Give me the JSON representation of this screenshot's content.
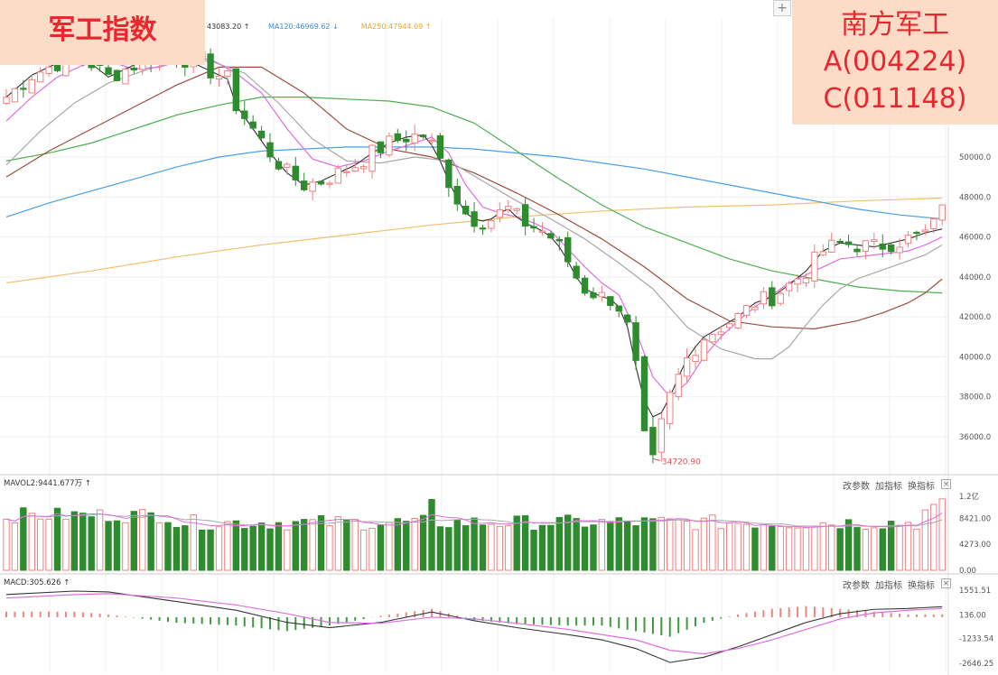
{
  "header": {
    "index_title": "军工指数",
    "fund_name": "南方军工",
    "fund_code_a": "A(004224)",
    "fund_code_c": "C(011148)",
    "ma_legend": [
      {
        "label": "43083.20 ↑",
        "color": "#333333"
      },
      {
        "label": "MA120:46969.62 ↓",
        "color": "#3a8fd8"
      },
      {
        "label": "MA250:47944.09 ↑",
        "color": "#e6a632"
      }
    ]
  },
  "toolbar": {
    "plus": "+",
    "change_params": "改参数",
    "add_indicator": "加指标",
    "switch_indicator": "换指标",
    "close": "×"
  },
  "colors": {
    "up": "#f08080",
    "down": "#2e8b2e",
    "ma5": "#333333",
    "ma10": "#e06ee0",
    "ma20": "#a8a8a8",
    "ma30": "#9a4f3f",
    "ma60": "#4caf50",
    "ma120": "#4a9fe8",
    "ma250": "#f0c070"
  },
  "chart_data": [
    {
      "type": "candlestick",
      "panel": "price",
      "ylim": [
        34000,
        56000
      ],
      "yticks": [
        "50000.0",
        "48000.0",
        "46000.0",
        "44000.0",
        "42000.0",
        "40000.0",
        "38000.0",
        "36000.0"
      ],
      "low_label": "34720.90",
      "series": [
        {
          "name": "MA120",
          "last": 46969.62
        },
        {
          "name": "MA250",
          "last": 47944.09
        }
      ],
      "ma_lines": {
        "ma5": [
          [
            0,
            53000
          ],
          [
            3,
            54100
          ],
          [
            6,
            54700
          ],
          [
            9,
            55000
          ],
          [
            12,
            54000
          ],
          [
            15,
            54600
          ],
          [
            18,
            55200
          ],
          [
            21,
            54900
          ],
          [
            24,
            54300
          ],
          [
            26,
            53900
          ],
          [
            27,
            52600
          ],
          [
            29,
            51400
          ],
          [
            31,
            50200
          ],
          [
            33,
            49200
          ],
          [
            35,
            48600
          ],
          [
            37,
            48800
          ],
          [
            39,
            49200
          ],
          [
            41,
            49600
          ],
          [
            43,
            50200
          ],
          [
            45,
            50700
          ],
          [
            47,
            51000
          ],
          [
            49,
            51100
          ],
          [
            50,
            50600
          ],
          [
            51,
            49800
          ],
          [
            52,
            48800
          ],
          [
            53,
            47900
          ],
          [
            54,
            47200
          ],
          [
            55,
            46900
          ],
          [
            56,
            46800
          ],
          [
            57,
            46900
          ],
          [
            58,
            47200
          ],
          [
            59,
            47400
          ],
          [
            60,
            47000
          ],
          [
            61,
            46700
          ],
          [
            62,
            46500
          ],
          [
            63,
            46300
          ],
          [
            64,
            46000
          ],
          [
            65,
            45500
          ],
          [
            66,
            44800
          ],
          [
            67,
            44000
          ],
          [
            68,
            43400
          ],
          [
            69,
            43200
          ],
          [
            70,
            43000
          ],
          [
            71,
            42900
          ],
          [
            72,
            42500
          ],
          [
            73,
            41500
          ],
          [
            74,
            39500
          ],
          [
            75,
            37800
          ],
          [
            76,
            37000
          ],
          [
            77,
            37200
          ],
          [
            78,
            38000
          ],
          [
            79,
            39000
          ],
          [
            80,
            39900
          ],
          [
            81,
            40500
          ],
          [
            82,
            41000
          ],
          [
            84,
            41500
          ],
          [
            86,
            42000
          ],
          [
            88,
            42700
          ],
          [
            90,
            43000
          ],
          [
            92,
            43600
          ],
          [
            94,
            44300
          ],
          [
            96,
            45300
          ],
          [
            98,
            45700
          ],
          [
            100,
            45600
          ],
          [
            102,
            45500
          ],
          [
            104,
            45700
          ],
          [
            106,
            45900
          ],
          [
            108,
            46200
          ],
          [
            110,
            46400
          ]
        ],
        "ma10": [
          [
            0,
            51800
          ],
          [
            3,
            53000
          ],
          [
            6,
            54000
          ],
          [
            9,
            54600
          ],
          [
            12,
            54800
          ],
          [
            15,
            54400
          ],
          [
            18,
            54500
          ],
          [
            21,
            54900
          ],
          [
            24,
            54900
          ],
          [
            27,
            54200
          ],
          [
            30,
            53200
          ],
          [
            33,
            51400
          ],
          [
            36,
            49900
          ],
          [
            39,
            49500
          ],
          [
            42,
            49800
          ],
          [
            45,
            50300
          ],
          [
            48,
            50700
          ],
          [
            50,
            51000
          ],
          [
            52,
            50200
          ],
          [
            54,
            48600
          ],
          [
            56,
            47500
          ],
          [
            58,
            47200
          ],
          [
            60,
            47000
          ],
          [
            62,
            46700
          ],
          [
            64,
            46300
          ],
          [
            66,
            45400
          ],
          [
            68,
            44500
          ],
          [
            70,
            43700
          ],
          [
            72,
            43100
          ],
          [
            74,
            41300
          ],
          [
            76,
            39000
          ],
          [
            78,
            38000
          ],
          [
            80,
            38700
          ],
          [
            82,
            40000
          ],
          [
            84,
            41000
          ],
          [
            86,
            41800
          ],
          [
            88,
            42500
          ],
          [
            90,
            43100
          ],
          [
            92,
            43700
          ],
          [
            94,
            44100
          ],
          [
            96,
            44500
          ],
          [
            98,
            44900
          ],
          [
            100,
            45000
          ],
          [
            102,
            45100
          ],
          [
            104,
            45200
          ],
          [
            106,
            45300
          ],
          [
            108,
            45600
          ],
          [
            110,
            46000
          ]
        ],
        "ma20": [
          [
            0,
            49600
          ],
          [
            4,
            51300
          ],
          [
            8,
            52700
          ],
          [
            12,
            53700
          ],
          [
            16,
            54300
          ],
          [
            20,
            54800
          ],
          [
            24,
            54800
          ],
          [
            28,
            54200
          ],
          [
            32,
            52700
          ],
          [
            36,
            50900
          ],
          [
            40,
            49800
          ],
          [
            44,
            49700
          ],
          [
            48,
            50000
          ],
          [
            52,
            49800
          ],
          [
            56,
            48800
          ],
          [
            60,
            47800
          ],
          [
            64,
            46900
          ],
          [
            68,
            45900
          ],
          [
            72,
            44700
          ],
          [
            76,
            43400
          ],
          [
            80,
            41500
          ],
          [
            84,
            40400
          ],
          [
            88,
            39900
          ],
          [
            90,
            39900
          ],
          [
            92,
            40500
          ],
          [
            94,
            41600
          ],
          [
            96,
            42600
          ],
          [
            98,
            43400
          ],
          [
            100,
            43900
          ],
          [
            102,
            44200
          ],
          [
            104,
            44500
          ],
          [
            106,
            44800
          ],
          [
            108,
            45100
          ],
          [
            110,
            45600
          ]
        ],
        "ma30": [
          [
            0,
            49000
          ],
          [
            5,
            50300
          ],
          [
            10,
            51400
          ],
          [
            15,
            52500
          ],
          [
            20,
            53600
          ],
          [
            25,
            54500
          ],
          [
            30,
            54500
          ],
          [
            35,
            53200
          ],
          [
            40,
            51400
          ],
          [
            45,
            50400
          ],
          [
            50,
            50000
          ],
          [
            55,
            49200
          ],
          [
            60,
            48200
          ],
          [
            65,
            47100
          ],
          [
            70,
            45900
          ],
          [
            75,
            44500
          ],
          [
            80,
            42900
          ],
          [
            85,
            41800
          ],
          [
            90,
            41500
          ],
          [
            95,
            41400
          ],
          [
            100,
            41800
          ],
          [
            103,
            42200
          ],
          [
            106,
            42700
          ],
          [
            108,
            43200
          ],
          [
            110,
            43900
          ]
        ],
        "ma60": [
          [
            0,
            49800
          ],
          [
            5,
            50200
          ],
          [
            10,
            50700
          ],
          [
            15,
            51400
          ],
          [
            20,
            52100
          ],
          [
            25,
            52600
          ],
          [
            30,
            53000
          ],
          [
            35,
            53000
          ],
          [
            40,
            52900
          ],
          [
            45,
            52800
          ],
          [
            50,
            52500
          ],
          [
            55,
            51700
          ],
          [
            60,
            50300
          ],
          [
            65,
            48900
          ],
          [
            70,
            47600
          ],
          [
            75,
            46500
          ],
          [
            80,
            45700
          ],
          [
            85,
            44900
          ],
          [
            90,
            44300
          ],
          [
            95,
            43900
          ],
          [
            100,
            43500
          ],
          [
            105,
            43300
          ],
          [
            110,
            43200
          ]
        ],
        "ma120": [
          [
            0,
            47000
          ],
          [
            5,
            47700
          ],
          [
            10,
            48300
          ],
          [
            15,
            48900
          ],
          [
            20,
            49500
          ],
          [
            25,
            50000
          ],
          [
            30,
            50300
          ],
          [
            35,
            50400
          ],
          [
            40,
            50500
          ],
          [
            45,
            50500
          ],
          [
            50,
            50500
          ],
          [
            55,
            50400
          ],
          [
            60,
            50200
          ],
          [
            65,
            50000
          ],
          [
            70,
            49700
          ],
          [
            75,
            49400
          ],
          [
            80,
            49000
          ],
          [
            85,
            48600
          ],
          [
            90,
            48200
          ],
          [
            95,
            47800
          ],
          [
            100,
            47400
          ],
          [
            105,
            47100
          ],
          [
            110,
            46900
          ]
        ],
        "ma250": [
          [
            0,
            43700
          ],
          [
            10,
            44300
          ],
          [
            20,
            45000
          ],
          [
            30,
            45600
          ],
          [
            40,
            46100
          ],
          [
            50,
            46600
          ],
          [
            60,
            47000
          ],
          [
            70,
            47300
          ],
          [
            80,
            47500
          ],
          [
            90,
            47600
          ],
          [
            100,
            47800
          ],
          [
            110,
            47950
          ]
        ]
      }
    },
    {
      "type": "bar",
      "panel": "volume",
      "title": "MAVOL2:9441.677万 ↑",
      "yticks": [
        "1.2亿",
        "8421.00",
        "4273.00",
        "0.00"
      ],
      "ylim": [
        0,
        12600
      ]
    },
    {
      "type": "bar",
      "panel": "macd",
      "title": "MACD:305.626 ↑",
      "yticks": [
        "1551.51",
        "136.00",
        "-1233.54",
        "-2646.25"
      ],
      "ylim": [
        -2900,
        1900
      ]
    }
  ]
}
